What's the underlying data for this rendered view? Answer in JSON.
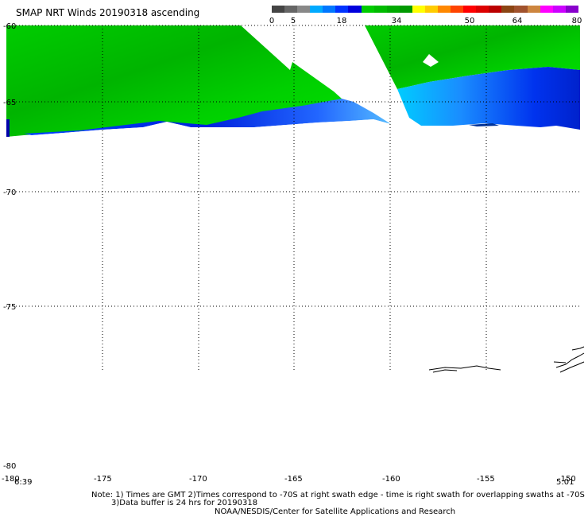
{
  "title": "SMAP NRT Winds 20190318 ascending",
  "colorbar": {
    "ticks": [
      "0",
      "5",
      "18",
      "34",
      "50",
      "64",
      "80"
    ],
    "colors": [
      "#444444",
      "#666666",
      "#888888",
      "#00aaff",
      "#0077ff",
      "#0033ff",
      "#0000dd",
      "#00cc00",
      "#00bb00",
      "#00aa00",
      "#009900",
      "#ffff00",
      "#ffcc00",
      "#ff8800",
      "#ff4400",
      "#ff0000",
      "#dd0000",
      "#bb0000",
      "#8b4513",
      "#a0522d",
      "#cd853f",
      "#ff00ff",
      "#cc00ff",
      "#8800cc"
    ]
  },
  "map": {
    "lat_labels": [
      "-60",
      "-65",
      "-70",
      "-75",
      "-80"
    ],
    "lon_labels": [
      "-180",
      "-175",
      "-170",
      "-165",
      "-160",
      "-155",
      "-150"
    ],
    "lon_labels_bottom": [
      "-180",
      "-175",
      "-170",
      "-165",
      "-160",
      "-155",
      "-150"
    ],
    "time_left": "6:39",
    "time_right": "5:01",
    "colors": {
      "wind_green": "#00dd00",
      "wind_dark_green": "#009900",
      "wind_blue": "#0033ff",
      "wind_cyan": "#00ccff",
      "grid": "#000000"
    }
  },
  "notes": {
    "line1": "Note: 1) Times are GMT 2)Times correspond to -70S at right swath edge - time is right swath for overlapping swaths at -70S",
    "line2": "3)Data buffer is 24 hrs for 20190318",
    "line3": "NOAA/NESDIS/Center for Satellite Applications and Research"
  }
}
